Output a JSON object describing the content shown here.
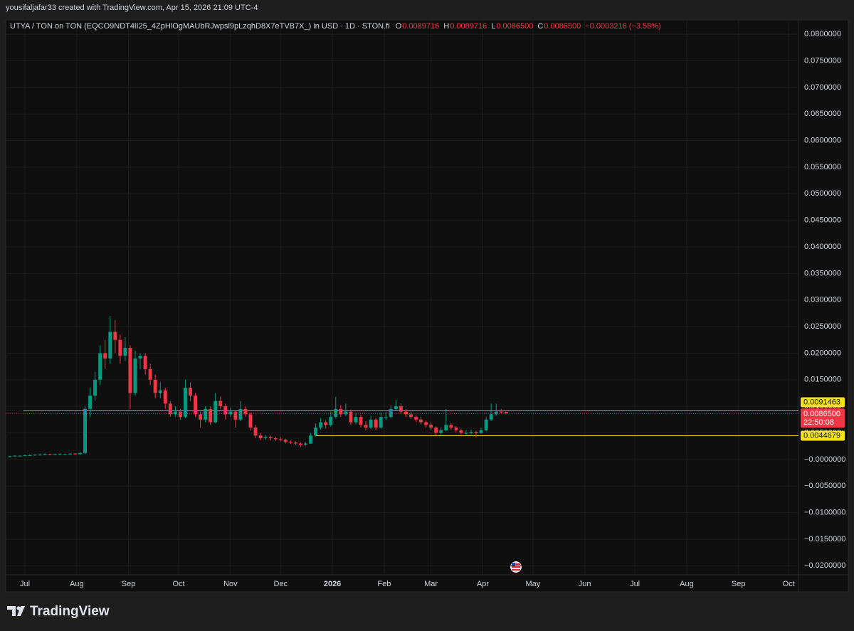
{
  "chart_data": {
    "type": "candlestick",
    "attribution": "yousifaljafar33 created with TradingView.com, Apr 15, 2026 21:09 UTC-4",
    "title": "UTYA / TON on TON (EQCO9NDT4lI25_4ZpHlOgMAUbRJwpsl9pLzqhD8X7eTVB7X_) in USD · 1D · STON.fi",
    "ohlc_legend": [
      {
        "key": "O",
        "text": "0.0089716"
      },
      {
        "key": "H",
        "text": "0.0089716"
      },
      {
        "key": "L",
        "text": "0.0086500"
      },
      {
        "key": "C",
        "text": "0.0086500"
      }
    ],
    "change": "−0.0003216 (−3.58%)",
    "brand": "TradingView",
    "up_color": "#089981",
    "down_color": "#f23645",
    "grid": true,
    "x": [
      -9,
      -6,
      -3,
      0,
      3,
      6,
      9,
      12,
      15,
      18,
      21,
      24,
      27,
      30,
      33,
      36,
      39,
      42,
      45,
      48,
      51,
      54,
      57,
      60,
      63,
      66,
      69,
      72,
      75,
      78,
      81,
      84,
      87,
      90,
      93,
      96,
      99,
      102,
      105,
      108,
      111,
      114,
      117,
      120,
      123,
      126,
      129,
      132,
      135,
      138,
      141,
      144,
      147,
      150,
      153,
      156,
      159,
      162,
      165,
      168,
      171,
      174,
      177,
      180,
      183,
      186,
      189,
      192,
      195,
      198,
      201,
      204,
      207,
      210,
      213,
      216,
      219,
      222,
      225,
      228,
      231,
      234,
      237,
      240,
      243,
      246,
      249,
      252,
      255,
      258,
      261,
      264,
      267,
      270,
      273,
      276,
      279,
      282,
      285,
      288
    ],
    "open": [
      0.0005,
      0.0006,
      0.0007,
      0.0007,
      0.0008,
      0.0008,
      0.0009,
      0.0009,
      0.001,
      0.0009,
      0.001,
      0.001,
      0.001,
      0.0011,
      0.001,
      0.0012,
      0.0095,
      0.012,
      0.015,
      0.02,
      0.019,
      0.024,
      0.0225,
      0.0195,
      0.021,
      0.0125,
      0.019,
      0.0195,
      0.017,
      0.015,
      0.0125,
      0.013,
      0.0105,
      0.0085,
      0.009,
      0.008,
      0.0135,
      0.012,
      0.0085,
      0.0075,
      0.0095,
      0.007,
      0.011,
      0.01,
      0.0085,
      0.009,
      0.0075,
      0.0095,
      0.0085,
      0.006,
      0.0045,
      0.004,
      0.0042,
      0.004,
      0.0038,
      0.0037,
      0.0033,
      0.0032,
      0.003,
      0.0028,
      0.003,
      0.0045,
      0.006,
      0.007,
      0.0065,
      0.008,
      0.0095,
      0.0085,
      0.009,
      0.007,
      0.008,
      0.0065,
      0.006,
      0.0075,
      0.006,
      0.008,
      0.008,
      0.0095,
      0.01,
      0.009,
      0.0085,
      0.008,
      0.0075,
      0.007,
      0.0065,
      0.006,
      0.005,
      0.0055,
      0.0065,
      0.006,
      0.0055,
      0.005,
      0.005,
      0.0052,
      0.005,
      0.0055,
      0.0075,
      0.0085,
      0.009,
      0.0089716
    ],
    "high": [
      0.0007,
      0.0008,
      0.0008,
      0.0009,
      0.001,
      0.001,
      0.0011,
      0.0012,
      0.0011,
      0.0011,
      0.0012,
      0.0011,
      0.0012,
      0.0012,
      0.0014,
      0.01,
      0.0135,
      0.0165,
      0.0215,
      0.0225,
      0.027,
      0.0262,
      0.0235,
      0.023,
      0.0215,
      0.0205,
      0.02,
      0.02,
      0.018,
      0.016,
      0.0145,
      0.0135,
      0.011,
      0.01,
      0.0095,
      0.015,
      0.0145,
      0.0125,
      0.009,
      0.01,
      0.01,
      0.0125,
      0.0118,
      0.0105,
      0.0098,
      0.0093,
      0.011,
      0.01,
      0.0088,
      0.0065,
      0.005,
      0.0046,
      0.0045,
      0.0043,
      0.0042,
      0.0039,
      0.0036,
      0.0034,
      0.0032,
      0.0033,
      0.005,
      0.0068,
      0.0078,
      0.0074,
      0.009,
      0.0118,
      0.0102,
      0.0105,
      0.0094,
      0.0088,
      0.0084,
      0.0072,
      0.0082,
      0.0078,
      0.0088,
      0.009,
      0.0102,
      0.0112,
      0.0105,
      0.0095,
      0.009,
      0.0083,
      0.008,
      0.0073,
      0.007,
      0.0062,
      0.006,
      0.0095,
      0.0068,
      0.0063,
      0.0058,
      0.0055,
      0.0056,
      0.0054,
      0.006,
      0.008,
      0.0105,
      0.0105,
      0.0095,
      0.0089716
    ],
    "low": [
      0.0004,
      0.0005,
      0.0006,
      0.0006,
      0.0007,
      0.0007,
      0.0008,
      0.0008,
      0.0008,
      0.0008,
      0.0009,
      0.0009,
      0.0009,
      0.0009,
      0.0009,
      0.001,
      0.008,
      0.011,
      0.014,
      0.017,
      0.018,
      0.02,
      0.018,
      0.0185,
      0.0095,
      0.012,
      0.017,
      0.016,
      0.014,
      0.0115,
      0.0115,
      0.0095,
      0.008,
      0.008,
      0.0075,
      0.0078,
      0.011,
      0.008,
      0.006,
      0.007,
      0.0065,
      0.0068,
      0.0095,
      0.0075,
      0.008,
      0.006,
      0.0072,
      0.008,
      0.0055,
      0.004,
      0.0036,
      0.0037,
      0.0036,
      0.0035,
      0.0034,
      0.003,
      0.0029,
      0.0027,
      0.0024,
      0.0026,
      0.0029,
      0.0043,
      0.0056,
      0.0058,
      0.0062,
      0.0078,
      0.008,
      0.0082,
      0.0065,
      0.0066,
      0.006,
      0.0055,
      0.0057,
      0.0055,
      0.0058,
      0.0074,
      0.0078,
      0.0092,
      0.0085,
      0.008,
      0.0076,
      0.0071,
      0.0066,
      0.006,
      0.0056,
      0.0045,
      0.0047,
      0.0053,
      0.0056,
      0.0051,
      0.0047,
      0.0046,
      0.0047,
      0.0042,
      0.0048,
      0.0053,
      0.0072,
      0.0082,
      0.0086,
      0.00865
    ],
    "close": [
      0.0006,
      0.0007,
      0.0007,
      0.0008,
      0.0008,
      0.0009,
      0.0009,
      0.001,
      0.0009,
      0.001,
      0.001,
      0.001,
      0.0011,
      0.001,
      0.0012,
      0.0095,
      0.012,
      0.015,
      0.02,
      0.019,
      0.024,
      0.0225,
      0.0195,
      0.021,
      0.0125,
      0.019,
      0.0195,
      0.017,
      0.015,
      0.0125,
      0.013,
      0.0105,
      0.0085,
      0.009,
      0.008,
      0.0135,
      0.012,
      0.0085,
      0.0075,
      0.0095,
      0.007,
      0.011,
      0.01,
      0.0085,
      0.009,
      0.0075,
      0.0095,
      0.0085,
      0.006,
      0.0045,
      0.004,
      0.0042,
      0.004,
      0.0038,
      0.0037,
      0.0033,
      0.0032,
      0.003,
      0.0028,
      0.003,
      0.0045,
      0.006,
      0.007,
      0.0065,
      0.008,
      0.0095,
      0.0085,
      0.009,
      0.007,
      0.008,
      0.0065,
      0.006,
      0.0075,
      0.006,
      0.008,
      0.008,
      0.0095,
      0.01,
      0.009,
      0.0085,
      0.008,
      0.0075,
      0.007,
      0.0065,
      0.006,
      0.005,
      0.0055,
      0.0065,
      0.006,
      0.0055,
      0.005,
      0.005,
      0.0052,
      0.005,
      0.0055,
      0.0075,
      0.0085,
      0.009,
      0.0089716,
      0.00865
    ],
    "last_price_label": "0.0086500",
    "countdown": "22:50:08",
    "hlines": [
      {
        "value": 0.0091463,
        "label": "0.0091463",
        "color": "#c9a227",
        "start": -1
      },
      {
        "value": 0.0044679,
        "label": "0.0044679",
        "color": "#f5e11f",
        "start": 174
      }
    ],
    "xlim": [
      -10.65,
      462.9
    ],
    "xticks": [
      {
        "value": 0,
        "label": "Jul"
      },
      {
        "value": 31,
        "label": "Aug"
      },
      {
        "value": 62,
        "label": "Sep"
      },
      {
        "value": 92,
        "label": "Oct"
      },
      {
        "value": 123,
        "label": "Nov"
      },
      {
        "value": 153,
        "label": "Dec"
      },
      {
        "value": 184,
        "label": "2026"
      },
      {
        "value": 215,
        "label": "Feb"
      },
      {
        "value": 243,
        "label": "Mar"
      },
      {
        "value": 274,
        "label": "Apr"
      },
      {
        "value": 304,
        "label": "May"
      },
      {
        "value": 335,
        "label": "Jun"
      },
      {
        "value": 365,
        "label": "Jul"
      },
      {
        "value": 396,
        "label": "Aug"
      },
      {
        "value": 427,
        "label": "Sep"
      },
      {
        "value": 457,
        "label": "Oct"
      }
    ],
    "ylim": [
      -0.0217,
      0.0827
    ],
    "yticks": [
      {
        "value": 0.08,
        "label": "0.0800000"
      },
      {
        "value": 0.075,
        "label": "0.0750000"
      },
      {
        "value": 0.07,
        "label": "0.0700000"
      },
      {
        "value": 0.065,
        "label": "0.0650000"
      },
      {
        "value": 0.06,
        "label": "0.0600000"
      },
      {
        "value": 0.055,
        "label": "0.0550000"
      },
      {
        "value": 0.05,
        "label": "0.0500000"
      },
      {
        "value": 0.045,
        "label": "0.0450000"
      },
      {
        "value": 0.04,
        "label": "0.0400000"
      },
      {
        "value": 0.035,
        "label": "0.0350000"
      },
      {
        "value": 0.03,
        "label": "0.0300000"
      },
      {
        "value": 0.025,
        "label": "0.0250000"
      },
      {
        "value": 0.02,
        "label": "0.0200000"
      },
      {
        "value": 0.015,
        "label": "0.0150000"
      },
      {
        "value": 0.01,
        "label": "0.0100000"
      },
      {
        "value": 0.005,
        "label": "0.0050000"
      },
      {
        "value": 0,
        "label": "−0.0000000"
      },
      {
        "value": -0.005,
        "label": "−0.0050000"
      },
      {
        "value": -0.01,
        "label": "−0.0100000"
      },
      {
        "value": -0.015,
        "label": "−0.0150000"
      },
      {
        "value": -0.02,
        "label": "−0.0200000"
      }
    ]
  }
}
